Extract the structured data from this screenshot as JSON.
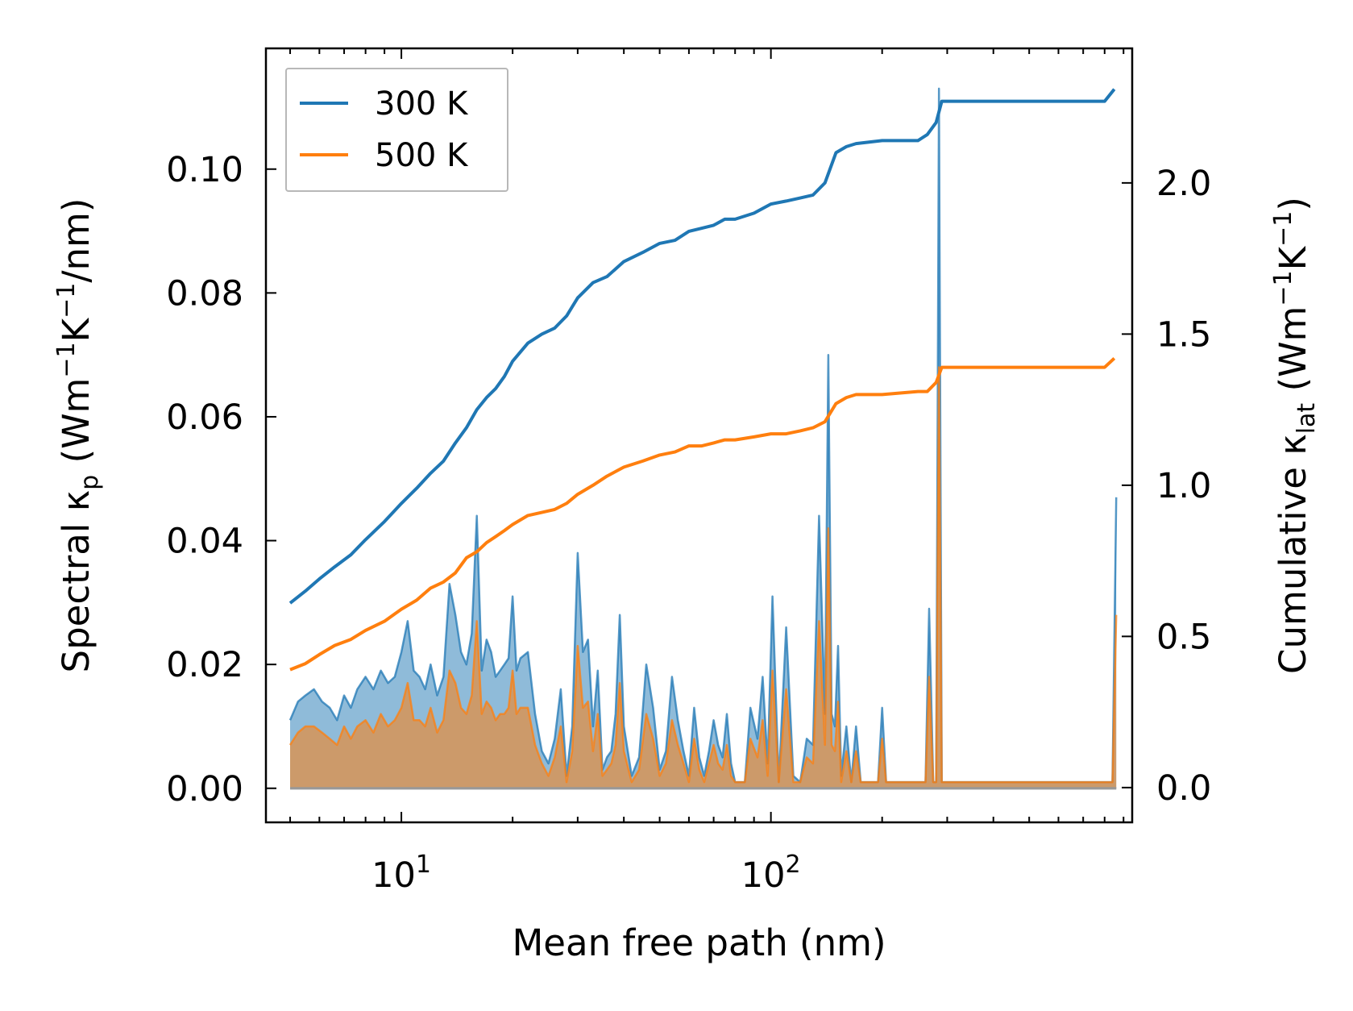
{
  "chart_data": {
    "type": "line",
    "xscale": "log",
    "xlabel": "Mean free path (nm)",
    "xlim": [
      4.3,
      950
    ],
    "xticks": [
      {
        "value": 10,
        "base": "10",
        "exp": "1"
      },
      {
        "value": 100,
        "base": "10",
        "exp": "2"
      }
    ],
    "ylabel_left": {
      "main": "Spectral κ",
      "sub": "p",
      "unit_a": " (Wm",
      "sup_a": "−1",
      "unit_b": "K",
      "sup_b": "−1",
      "unit_c": "/nm)"
    },
    "ylim_left": [
      -0.0055,
      0.1195
    ],
    "yticks_left": [
      {
        "value": 0.0,
        "label": "0.00"
      },
      {
        "value": 0.02,
        "label": "0.02"
      },
      {
        "value": 0.04,
        "label": "0.04"
      },
      {
        "value": 0.06,
        "label": "0.06"
      },
      {
        "value": 0.08,
        "label": "0.08"
      },
      {
        "value": 0.1,
        "label": "0.10"
      }
    ],
    "ylabel_right": {
      "main": "Cumulative κ",
      "sub": "lat",
      "unit_a": " (Wm",
      "sup_a": "−1",
      "unit_b": "K",
      "sup_b": "−1",
      "unit_c": ")"
    },
    "ylim_right": [
      -0.115,
      2.445
    ],
    "yticks_right": [
      {
        "value": 0.0,
        "label": "0.0"
      },
      {
        "value": 0.5,
        "label": "0.5"
      },
      {
        "value": 1.0,
        "label": "1.0"
      },
      {
        "value": 1.5,
        "label": "1.5"
      },
      {
        "value": 2.0,
        "label": "2.0"
      }
    ],
    "legend": {
      "position": "top-left",
      "entries": [
        "300 K",
        "500 K"
      ]
    },
    "series": [
      {
        "name": "300 K",
        "color": "#1f77b4",
        "fill": "#1f77b4",
        "cumulative": {
          "x": [
            5.0,
            5.5,
            6.0,
            6.6,
            7.3,
            8.0,
            9.0,
            10.0,
            11.0,
            12.0,
            13.0,
            14.0,
            15.0,
            16.0,
            17.0,
            18.0,
            19.0,
            20.0,
            22.0,
            24.0,
            26.0,
            28.0,
            30.0,
            33.0,
            36.0,
            40.0,
            45.0,
            50.0,
            55.0,
            60.0,
            65.0,
            70.0,
            75.0,
            80.0,
            90.0,
            100.0,
            110.0,
            120.0,
            130.0,
            140.0,
            150.0,
            160.0,
            170.0,
            200.0,
            250.0,
            265.0,
            280.0,
            290.0,
            400.0,
            600.0,
            800.0,
            850.0
          ],
          "y": [
            0.61,
            0.65,
            0.69,
            0.73,
            0.77,
            0.82,
            0.88,
            0.94,
            0.99,
            1.04,
            1.08,
            1.14,
            1.19,
            1.25,
            1.29,
            1.32,
            1.36,
            1.41,
            1.47,
            1.5,
            1.52,
            1.56,
            1.62,
            1.67,
            1.69,
            1.74,
            1.77,
            1.8,
            1.81,
            1.84,
            1.85,
            1.86,
            1.88,
            1.88,
            1.9,
            1.93,
            1.94,
            1.95,
            1.96,
            2.0,
            2.1,
            2.12,
            2.13,
            2.14,
            2.14,
            2.16,
            2.2,
            2.27,
            2.27,
            2.27,
            2.27,
            2.31
          ]
        },
        "spectral": {
          "x": [
            5.0,
            5.25,
            5.5,
            5.8,
            6.1,
            6.4,
            6.7,
            7.0,
            7.3,
            7.6,
            8.0,
            8.4,
            8.8,
            9.2,
            9.6,
            10.0,
            10.4,
            10.8,
            11.2,
            11.6,
            12.0,
            12.5,
            13.0,
            13.5,
            14.0,
            14.5,
            15.0,
            15.5,
            16.0,
            16.5,
            17.0,
            17.5,
            18.0,
            18.5,
            19.0,
            19.5,
            20.0,
            20.5,
            21.0,
            22.0,
            23.0,
            24.0,
            25.0,
            26.0,
            27.0,
            28.0,
            29.0,
            30.0,
            31.0,
            32.0,
            33.0,
            34.0,
            35.0,
            36.0,
            37.0,
            38.0,
            39.0,
            40.0,
            42.0,
            44.0,
            46.0,
            48.0,
            50.0,
            52.0,
            54.0,
            56.0,
            58.0,
            60.0,
            62.0,
            64.0,
            66.0,
            68.0,
            70.0,
            72.0,
            74.0,
            76.0,
            78.0,
            80.0,
            85.0,
            88.0,
            92.0,
            95.0,
            98.0,
            101.0,
            105.0,
            110.0,
            115.0,
            120.0,
            125.0,
            130.0,
            135.0,
            140.0,
            143.0,
            146.0,
            149.0,
            152.0,
            155.0,
            160.0,
            165.0,
            170.0,
            175.0,
            180.0,
            190.0,
            195.0,
            200.0,
            205.0,
            210.0,
            230.0,
            250.0,
            262.0,
            268.0,
            275.0,
            280.0,
            285.0,
            290.0,
            300.0,
            400.0,
            600.0,
            820.0,
            840.0,
            860.0
          ],
          "y": [
            0.011,
            0.014,
            0.015,
            0.016,
            0.014,
            0.013,
            0.011,
            0.015,
            0.013,
            0.016,
            0.018,
            0.016,
            0.019,
            0.017,
            0.018,
            0.022,
            0.027,
            0.019,
            0.018,
            0.016,
            0.02,
            0.015,
            0.018,
            0.033,
            0.028,
            0.022,
            0.02,
            0.025,
            0.044,
            0.019,
            0.024,
            0.022,
            0.018,
            0.019,
            0.02,
            0.021,
            0.031,
            0.019,
            0.021,
            0.022,
            0.012,
            0.006,
            0.004,
            0.008,
            0.016,
            0.002,
            0.01,
            0.038,
            0.022,
            0.024,
            0.01,
            0.019,
            0.003,
            0.005,
            0.006,
            0.012,
            0.028,
            0.01,
            0.002,
            0.005,
            0.02,
            0.013,
            0.003,
            0.006,
            0.018,
            0.011,
            0.006,
            0.002,
            0.013,
            0.005,
            0.002,
            0.006,
            0.011,
            0.007,
            0.005,
            0.012,
            0.004,
            0.001,
            0.001,
            0.013,
            0.008,
            0.018,
            0.004,
            0.031,
            0.001,
            0.026,
            0.002,
            0.001,
            0.008,
            0.007,
            0.044,
            0.012,
            0.07,
            0.012,
            0.01,
            0.023,
            0.002,
            0.01,
            0.001,
            0.01,
            0.001,
            0.001,
            0.001,
            0.001,
            0.013,
            0.001,
            0.001,
            0.001,
            0.001,
            0.001,
            0.029,
            0.001,
            0.001,
            0.113,
            0.001,
            0.001,
            0.001,
            0.001,
            0.001,
            0.001,
            0.047
          ]
        }
      },
      {
        "name": "500 K",
        "color": "#ff7f0e",
        "fill": "#ff7f0e",
        "cumulative": {
          "x": [
            5.0,
            5.5,
            6.0,
            6.6,
            7.3,
            8.0,
            9.0,
            10.0,
            11.0,
            12.0,
            13.0,
            14.0,
            15.0,
            16.0,
            17.0,
            18.0,
            19.0,
            20.0,
            22.0,
            24.0,
            26.0,
            28.0,
            30.0,
            33.0,
            36.0,
            40.0,
            45.0,
            50.0,
            55.0,
            60.0,
            65.0,
            70.0,
            75.0,
            80.0,
            90.0,
            100.0,
            110.0,
            120.0,
            130.0,
            140.0,
            150.0,
            160.0,
            170.0,
            200.0,
            250.0,
            265.0,
            280.0,
            290.0,
            400.0,
            600.0,
            800.0,
            850.0
          ],
          "y": [
            0.39,
            0.41,
            0.44,
            0.47,
            0.49,
            0.52,
            0.55,
            0.59,
            0.62,
            0.66,
            0.68,
            0.71,
            0.76,
            0.78,
            0.81,
            0.83,
            0.85,
            0.87,
            0.9,
            0.91,
            0.92,
            0.94,
            0.97,
            1.0,
            1.03,
            1.06,
            1.08,
            1.1,
            1.11,
            1.13,
            1.13,
            1.14,
            1.15,
            1.15,
            1.16,
            1.17,
            1.17,
            1.18,
            1.19,
            1.21,
            1.27,
            1.29,
            1.3,
            1.3,
            1.31,
            1.31,
            1.34,
            1.39,
            1.39,
            1.39,
            1.39,
            1.42
          ]
        },
        "spectral": {
          "x": [
            5.0,
            5.25,
            5.5,
            5.8,
            6.1,
            6.4,
            6.7,
            7.0,
            7.3,
            7.6,
            8.0,
            8.4,
            8.8,
            9.2,
            9.6,
            10.0,
            10.4,
            10.8,
            11.2,
            11.6,
            12.0,
            12.5,
            13.0,
            13.5,
            14.0,
            14.5,
            15.0,
            15.5,
            16.0,
            16.5,
            17.0,
            17.5,
            18.0,
            18.5,
            19.0,
            19.5,
            20.0,
            20.5,
            21.0,
            22.0,
            23.0,
            24.0,
            25.0,
            26.0,
            27.0,
            28.0,
            29.0,
            30.0,
            31.0,
            32.0,
            33.0,
            34.0,
            35.0,
            36.0,
            37.0,
            38.0,
            39.0,
            40.0,
            42.0,
            44.0,
            46.0,
            48.0,
            50.0,
            52.0,
            54.0,
            56.0,
            58.0,
            60.0,
            62.0,
            64.0,
            66.0,
            68.0,
            70.0,
            72.0,
            74.0,
            76.0,
            78.0,
            80.0,
            85.0,
            88.0,
            92.0,
            95.0,
            98.0,
            101.0,
            105.0,
            110.0,
            115.0,
            120.0,
            125.0,
            130.0,
            135.0,
            140.0,
            143.0,
            146.0,
            149.0,
            152.0,
            155.0,
            160.0,
            165.0,
            170.0,
            175.0,
            180.0,
            190.0,
            195.0,
            200.0,
            205.0,
            210.0,
            230.0,
            250.0,
            262.0,
            268.0,
            275.0,
            280.0,
            285.0,
            290.0,
            300.0,
            400.0,
            600.0,
            820.0,
            840.0,
            860.0
          ],
          "y": [
            0.007,
            0.009,
            0.01,
            0.01,
            0.009,
            0.008,
            0.007,
            0.01,
            0.008,
            0.01,
            0.011,
            0.009,
            0.012,
            0.01,
            0.011,
            0.013,
            0.017,
            0.011,
            0.011,
            0.01,
            0.013,
            0.009,
            0.011,
            0.019,
            0.017,
            0.013,
            0.012,
            0.015,
            0.027,
            0.012,
            0.014,
            0.013,
            0.011,
            0.012,
            0.012,
            0.013,
            0.019,
            0.012,
            0.013,
            0.013,
            0.007,
            0.004,
            0.002,
            0.005,
            0.01,
            0.001,
            0.006,
            0.023,
            0.013,
            0.014,
            0.006,
            0.012,
            0.002,
            0.003,
            0.004,
            0.007,
            0.017,
            0.006,
            0.001,
            0.003,
            0.012,
            0.008,
            0.002,
            0.004,
            0.011,
            0.007,
            0.004,
            0.001,
            0.008,
            0.003,
            0.001,
            0.004,
            0.007,
            0.004,
            0.003,
            0.007,
            0.002,
            0.001,
            0.001,
            0.008,
            0.005,
            0.011,
            0.002,
            0.019,
            0.001,
            0.016,
            0.001,
            0.001,
            0.005,
            0.004,
            0.027,
            0.007,
            0.042,
            0.007,
            0.006,
            0.014,
            0.001,
            0.006,
            0.001,
            0.006,
            0.001,
            0.001,
            0.001,
            0.001,
            0.008,
            0.001,
            0.001,
            0.001,
            0.001,
            0.001,
            0.018,
            0.001,
            0.001,
            0.068,
            0.001,
            0.001,
            0.001,
            0.001,
            0.001,
            0.001,
            0.028
          ]
        }
      }
    ]
  }
}
